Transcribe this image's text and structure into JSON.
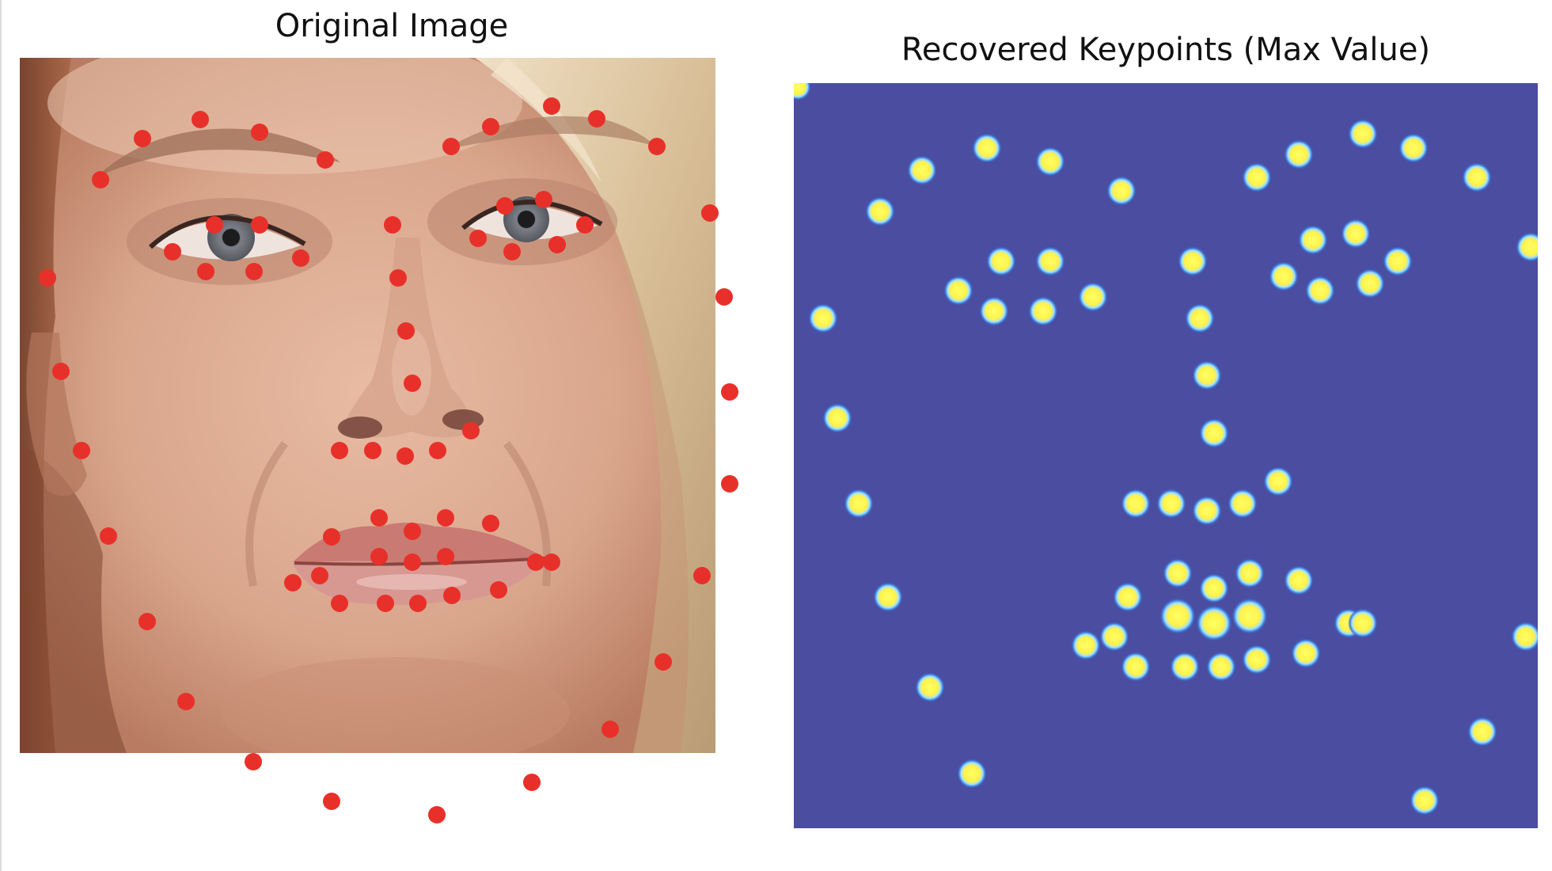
{
  "panels": {
    "left": {
      "title": "Original Image"
    },
    "right": {
      "title": "Recovered Keypoints (Max Value)"
    }
  },
  "colors": {
    "landmark": "#e8302a",
    "heatmap_background": "#4a4da0",
    "heatmap_peak": "#ffff55",
    "heatmap_glow": "#3da8ff",
    "skin": "#d7a58d",
    "hair": "#dcc4a1"
  },
  "landmark_count": 68
}
